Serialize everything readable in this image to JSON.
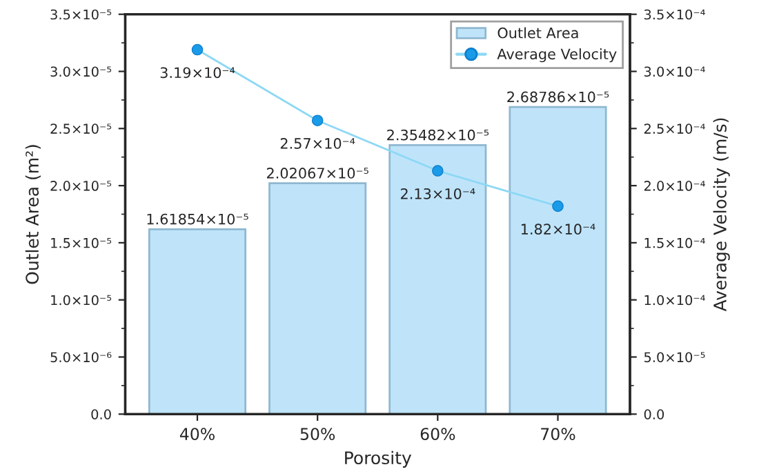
{
  "chart_data": {
    "type": "bar",
    "xlabel": "Porosity",
    "ylabel": "Outlet Area (m²)",
    "y2label": "Average Velocity (m/s)",
    "categories": [
      "40%",
      "50%",
      "60%",
      "70%"
    ],
    "series": [
      {
        "name": "Outlet Area",
        "color": "#bfe4fa",
        "values": [
          1.61854e-05,
          2.02067e-05,
          2.35482e-05,
          2.68786e-05
        ],
        "value_labels": [
          "1.61854×10⁻⁵",
          "2.02067×10⁻⁵",
          "2.35482×10⁻⁵",
          "2.68786×10⁻⁵"
        ]
      },
      {
        "name": "Average Velocity",
        "type": "line",
        "axis": "y2",
        "color": "#1a9be8",
        "marker": "circle",
        "values": [
          0.000319,
          0.000257,
          0.000213,
          0.000182
        ],
        "value_labels": [
          "3.19×10⁻⁴",
          "2.57×10⁻⁴",
          "2.13×10⁻⁴",
          "1.82×10⁻⁴"
        ]
      }
    ],
    "ylim": [
      0,
      3.5e-05
    ],
    "yticks": [
      {
        "value": 0,
        "label": "0.0"
      },
      {
        "value": 5e-06,
        "label": "5.0×10⁻⁶"
      },
      {
        "value": 1e-05,
        "label": "1.0×10⁻⁵"
      },
      {
        "value": 1.5e-05,
        "label": "1.5×10⁻⁵"
      },
      {
        "value": 2e-05,
        "label": "2.0×10⁻⁵"
      },
      {
        "value": 2.5e-05,
        "label": "2.5×10⁻⁵"
      },
      {
        "value": 3e-05,
        "label": "3.0×10⁻⁵"
      },
      {
        "value": 3.5e-05,
        "label": "3.5×10⁻⁵"
      }
    ],
    "y2lim": [
      0,
      0.00035
    ],
    "y2ticks": [
      {
        "value": 0,
        "label": "0.0"
      },
      {
        "value": 5e-05,
        "label": "5.0×10⁻⁵"
      },
      {
        "value": 0.0001,
        "label": "1.0×10⁻⁴"
      },
      {
        "value": 0.00015,
        "label": "1.5×10⁻⁴"
      },
      {
        "value": 0.0002,
        "label": "2.0×10⁻⁴"
      },
      {
        "value": 0.00025,
        "label": "2.5×10⁻⁴"
      },
      {
        "value": 0.0003,
        "label": "3.0×10⁻⁴"
      },
      {
        "value": 0.00035,
        "label": "3.5×10⁻⁴"
      }
    ],
    "legend": "top right",
    "grid": false
  }
}
